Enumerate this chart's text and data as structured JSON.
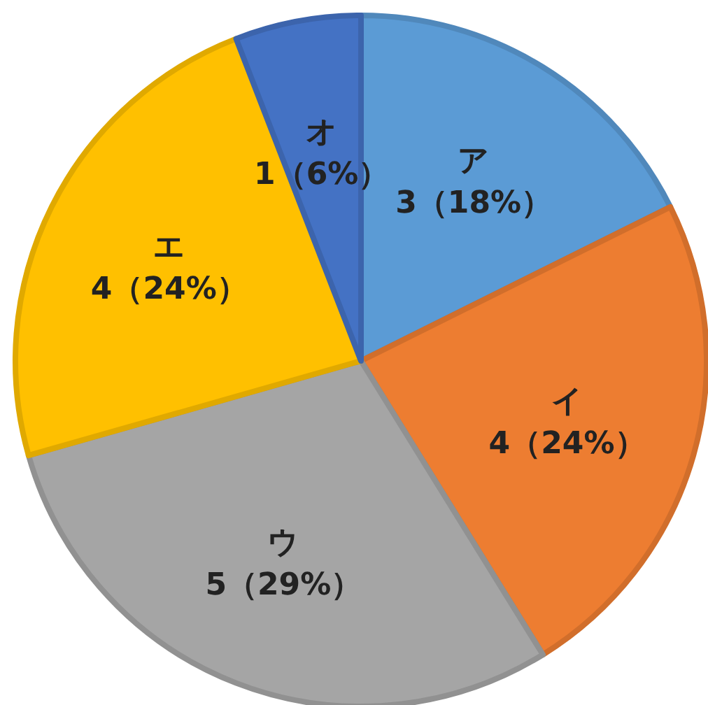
{
  "chart_data": {
    "type": "pie",
    "categories": [
      "ア",
      "イ",
      "ウ",
      "エ",
      "オ"
    ],
    "values": [
      3,
      4,
      5,
      4,
      1
    ],
    "colors": [
      "#5b9bd5",
      "#ed7d31",
      "#a5a5a5",
      "#ffc000",
      "#4472c4"
    ],
    "value_labels": [
      "3（18%）",
      "4（24%）",
      "5（29%）",
      "4（24%）",
      "1（6%）"
    ]
  }
}
